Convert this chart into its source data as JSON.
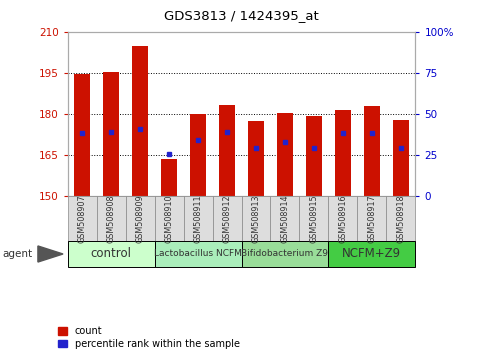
{
  "title": "GDS3813 / 1424395_at",
  "samples": [
    "GSM508907",
    "GSM508908",
    "GSM508909",
    "GSM508910",
    "GSM508911",
    "GSM508912",
    "GSM508913",
    "GSM508914",
    "GSM508915",
    "GSM508916",
    "GSM508917",
    "GSM508918"
  ],
  "bar_tops": [
    194.5,
    195.5,
    205.0,
    163.5,
    180.0,
    183.5,
    177.5,
    180.5,
    179.5,
    181.5,
    183.0,
    178.0
  ],
  "bar_base": 150,
  "blue_vals": [
    173.0,
    173.5,
    174.5,
    165.5,
    170.5,
    173.5,
    167.5,
    170.0,
    167.5,
    173.0,
    173.0,
    167.5
  ],
  "ylim_left": [
    150,
    210
  ],
  "ylim_right": [
    0,
    100
  ],
  "yticks_left": [
    150,
    165,
    180,
    195,
    210
  ],
  "yticks_right": [
    0,
    25,
    50,
    75,
    100
  ],
  "grid_vals": [
    165,
    180,
    195
  ],
  "groups": [
    {
      "label": "control",
      "span": [
        0,
        3
      ],
      "color": "#ccffcc",
      "fontsize": 8.5
    },
    {
      "label": "Lactobacillus NCFM",
      "span": [
        3,
        6
      ],
      "color": "#aaeebb",
      "fontsize": 6.5
    },
    {
      "label": "Bifidobacterium Z9",
      "span": [
        6,
        9
      ],
      "color": "#99dd99",
      "fontsize": 6.5
    },
    {
      "label": "NCFM+Z9",
      "span": [
        9,
        12
      ],
      "color": "#44cc44",
      "fontsize": 8.5
    }
  ],
  "bar_color": "#cc1100",
  "blue_color": "#2222cc",
  "bg_color": "#ffffff",
  "left_label_color": "#cc1100",
  "right_label_color": "#0000cc",
  "title_color": "#000000",
  "bar_width": 0.55,
  "legend_items": [
    "count",
    "percentile rank within the sample"
  ],
  "sample_box_color": "#dddddd"
}
